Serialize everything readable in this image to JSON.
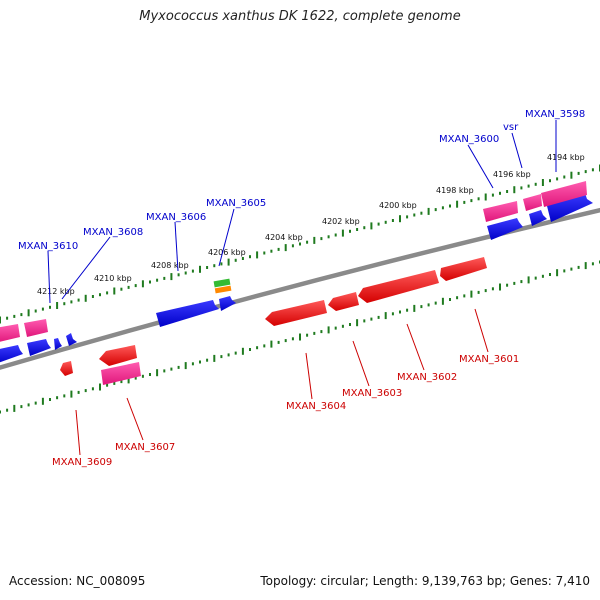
{
  "title": "Myxococcus xanthus DK 1622, complete genome",
  "accession": "Accession: NC_008095",
  "summary": "Topology: circular; Length: 9,139,763 bp; Genes: 7,410",
  "colors": {
    "backbone": "#8a8a8a",
    "tick": "#1f7a1f",
    "forward_gene": "#0000e0",
    "forward_cds": "#ff3399",
    "reverse_gene": "#e00000",
    "forward_label": "#0000cc",
    "reverse_label": "#cc0000"
  },
  "kbp_labels": [
    "4194 kbp",
    "4196 kbp",
    "4198 kbp",
    "4200 kbp",
    "4202 kbp",
    "4204 kbp",
    "4206 kbp",
    "4208 kbp",
    "4210 kbp",
    "4212 kbp"
  ],
  "forward_genes": [
    "MXAN_3598",
    "vsr",
    "MXAN_3600",
    "MXAN_3605",
    "MXAN_3606",
    "MXAN_3608",
    "MXAN_3610"
  ],
  "reverse_genes": [
    "MXAN_3601",
    "MXAN_3602",
    "MXAN_3603",
    "MXAN_3604",
    "MXAN_3607",
    "MXAN_3609"
  ]
}
